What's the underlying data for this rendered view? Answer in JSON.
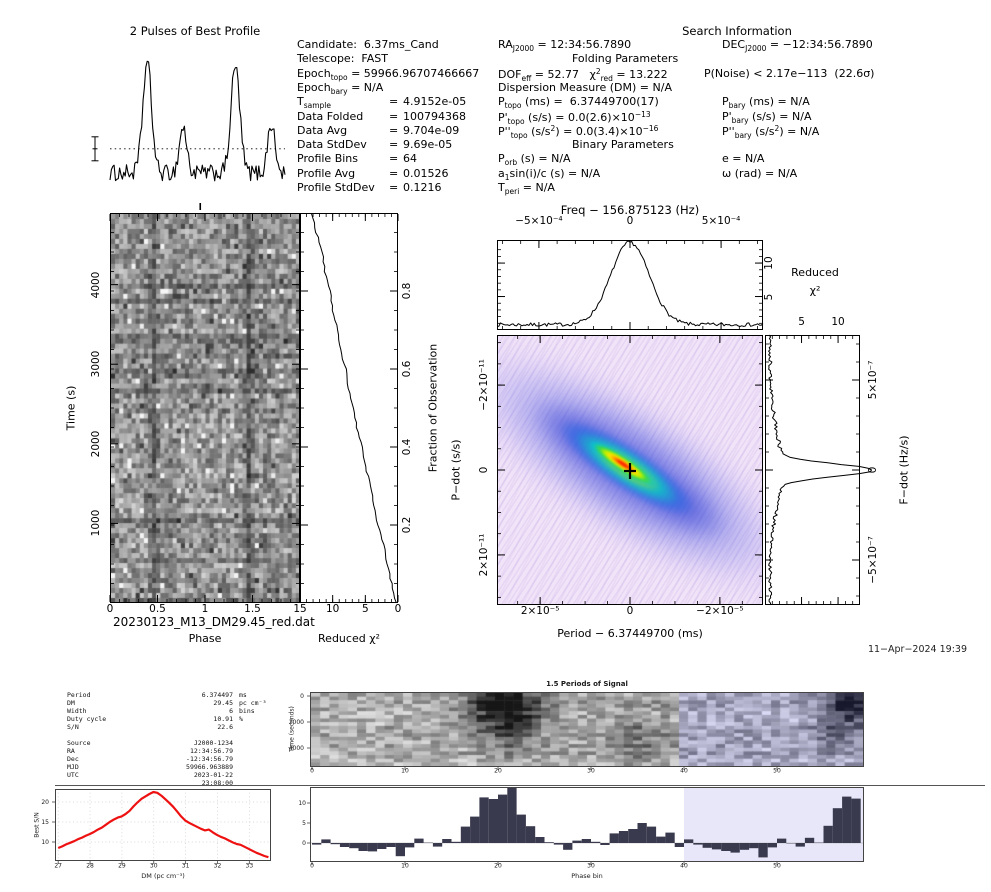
{
  "presto": {
    "profile_title": "2 Pulses of Best Profile",
    "candidate_lines": [
      {
        "tokens": [
          {
            "t": "Candidate:  6.37ms_Cand"
          }
        ]
      },
      {
        "tokens": [
          {
            "t": "Telescope:  FAST"
          }
        ]
      },
      {
        "tokens": [
          {
            "t": "Epoch"
          },
          {
            "sub": "topo"
          },
          {
            "t": " = 59966.96707466667"
          }
        ]
      },
      {
        "tokens": [
          {
            "t": "Epoch"
          },
          {
            "sub": "bary"
          },
          {
            "t": " = N/A"
          }
        ]
      },
      {
        "tokens": [
          {
            "t": "T"
          },
          {
            "sub": "sample"
          }
        ],
        "eq": "4.9152e-05"
      },
      {
        "tokens": [
          {
            "t": "Data Folded"
          }
        ],
        "eq": "100794368"
      },
      {
        "tokens": [
          {
            "t": "Data Avg"
          }
        ],
        "eq": "9.704e-09"
      },
      {
        "tokens": [
          {
            "t": "Data StdDev"
          }
        ],
        "eq": "9.69e-05"
      },
      {
        "tokens": [
          {
            "t": "Profile Bins"
          }
        ],
        "eq": "64"
      },
      {
        "tokens": [
          {
            "t": "Profile Avg"
          }
        ],
        "eq": "0.01526"
      },
      {
        "tokens": [
          {
            "t": "Profile StdDev"
          }
        ],
        "eq": "0.1216"
      }
    ],
    "search": {
      "title": "Search Information",
      "lines": [
        {
          "left": [
            {
              "t": "RA"
            },
            {
              "sub": "J2000"
            },
            {
              "t": " = 12:34:56.7890"
            }
          ],
          "right": [
            {
              "t": "DEC"
            },
            {
              "sub": "J2000"
            },
            {
              "t": " = −12:34:56.7890"
            }
          ]
        },
        {
          "heading": [
            {
              "t": "Folding Parameters"
            }
          ]
        },
        {
          "left": [
            {
              "t": "DOF"
            },
            {
              "sub": "eff"
            },
            {
              "t": " = 52.77   χ"
            },
            {
              "sup": "2"
            },
            {
              "sub": "red"
            },
            {
              "t": " = 13.222"
            }
          ],
          "right": [
            {
              "t": "P(Noise) < 2.17e−113  (22.6σ)"
            }
          ],
          "rx": 206
        },
        {
          "left": [
            {
              "t": "Dispersion Measure (DM) = N/A"
            }
          ]
        },
        {
          "left": [
            {
              "t": "P"
            },
            {
              "sub": "topo"
            },
            {
              "t": " (ms) =  6.37449700(17)"
            }
          ],
          "right": [
            {
              "t": "P"
            },
            {
              "sub": "bary"
            },
            {
              "t": " (ms) = N/A"
            }
          ]
        },
        {
          "left": [
            {
              "t": "P'"
            },
            {
              "sub": "topo"
            },
            {
              "t": " (s/s) = 0.0(2.6)×10"
            },
            {
              "sup": "−13"
            }
          ],
          "right": [
            {
              "t": "P'"
            },
            {
              "sub": "bary"
            },
            {
              "t": " (s/s) = N/A"
            }
          ]
        },
        {
          "left": [
            {
              "t": "P''"
            },
            {
              "sub": "topo"
            },
            {
              "t": " (s/s"
            },
            {
              "sup": "2"
            },
            {
              "t": ") = 0.0(3.4)×10"
            },
            {
              "sup": "−16"
            }
          ],
          "right": [
            {
              "t": "P''"
            },
            {
              "sub": "bary"
            },
            {
              "t": " (s/s"
            },
            {
              "sup": "2"
            },
            {
              "t": ") = N/A"
            }
          ]
        },
        {
          "heading": [
            {
              "t": "Binary Parameters"
            }
          ]
        },
        {
          "left": [
            {
              "t": "P"
            },
            {
              "sub": "orb"
            },
            {
              "t": " (s) = N/A"
            }
          ],
          "right": [
            {
              "t": "e = N/A"
            }
          ]
        },
        {
          "left": [
            {
              "t": "a"
            },
            {
              "sub": "1"
            },
            {
              "t": "sin(i)/c (s) = N/A"
            }
          ],
          "right": [
            {
              "t": "ω (rad) = N/A"
            }
          ]
        },
        {
          "left": [
            {
              "t": "T"
            },
            {
              "sub": "peri"
            },
            {
              "t": " = N/A"
            }
          ]
        }
      ]
    },
    "filename": "20230123_M13_DM29.45_red.dat",
    "datestamp": "11−Apr−2024 19:39"
  },
  "labels": {
    "phase": "Phase",
    "time_s": "Time (s)",
    "reduced_chi2": "Reduced χ²",
    "fraction": "Fraction of Observation",
    "freq_title": "Freq − 156.875123 (Hz)",
    "reduced_word": "Reduced",
    "chi2_sq": "χ²",
    "pdot": "P−dot (s/s)",
    "period_label": "Period − 6.37449700 (ms)",
    "fdot": "F−dot (Hz/s)",
    "wf_title": "1.5 Periods of Signal",
    "time_seconds": "Time (seconds)",
    "best_sn": "Best S/N",
    "dm_label": "DM (pc cm⁻³)",
    "phase_bin": "Phase bin"
  },
  "bottom": {
    "info_rows": [
      {
        "label": "Period",
        "value": "6.374497",
        "unit": "ms"
      },
      {
        "label": "DM",
        "value": "29.45",
        "unit": "pc cm⁻³"
      },
      {
        "label": "Width",
        "value": "6",
        "unit": "bins"
      },
      {
        "label": "Duty cycle",
        "value": "10.91",
        "unit": "%"
      },
      {
        "label": "S/N",
        "value": "22.6",
        "unit": ""
      },
      {
        "gap": true
      },
      {
        "label": "Source",
        "value": "J2000-1234",
        "unit": ""
      },
      {
        "label": "RA",
        "value": "12:34:56.79",
        "unit": ""
      },
      {
        "label": "Dec",
        "value": "-12:34:56.79",
        "unit": ""
      },
      {
        "label": "MJD",
        "value": "59966.963889",
        "unit": ""
      },
      {
        "label": "UTC",
        "value": "2023-01-22 23:08:00",
        "unit": ""
      }
    ]
  },
  "colors": {
    "snr_red": "#ee1111",
    "hist_bar": "#3a3a4e",
    "highlight_lavender": "#e7e7f9",
    "band_blue": "#3c46d8",
    "pdot_background": "#f2e4f8"
  },
  "chart_data": [
    {
      "id": "pulse_profile",
      "type": "line",
      "title": "2 Pulses of Best Profile",
      "x_desc": "2 pulses, 128 phase bins",
      "peaks": [
        {
          "bin": 27,
          "amp": 1.0,
          "sigma": 3.2
        },
        {
          "bin": 53,
          "amp": 0.42,
          "sigma": 2.6
        },
        {
          "bin": 91,
          "amp": 0.97,
          "sigma": 3.2
        },
        {
          "bin": 117,
          "amp": 0.45,
          "sigma": 2.6
        }
      ],
      "noise_sigma": 0.075,
      "mean_level": 0.22,
      "error_bar": true
    },
    {
      "id": "phase_time",
      "type": "heatmap",
      "xlabel": "Phase",
      "ylabel": "Time (s)",
      "xlim": [
        0,
        2
      ],
      "ylim": [
        0,
        4900
      ],
      "xticks": [
        0,
        0.5,
        1,
        1.5
      ],
      "yticks": [
        1000,
        2000,
        3000,
        4000
      ],
      "pulse_band_phases": [
        0.45,
        1.45
      ],
      "marker_phase": 0.95
    },
    {
      "id": "chi2_vs_time",
      "type": "line",
      "xlabel": "Reduced χ²",
      "xlim": [
        15,
        0
      ],
      "xticks": [
        15,
        10,
        5,
        0
      ],
      "right_label": "Fraction of Observation",
      "right_ticks": [
        0.2,
        0.4,
        0.6,
        0.8
      ],
      "fraction_step": 0.05,
      "chi2": [
        0.3,
        1.0,
        1.7,
        2.2,
        3.1,
        3.7,
        4.1,
        5.0,
        5.5,
        6.3,
        6.8,
        7.6,
        8.0,
        8.8,
        9.2,
        10.0,
        10.4,
        11.2,
        11.6,
        12.5,
        13.2
      ]
    },
    {
      "id": "freq_chi2",
      "type": "line",
      "title": "Freq − 156.875123 (Hz)",
      "xticks": [
        "−5×10⁻⁴",
        "0",
        "5×10⁻⁴"
      ],
      "xtick_values": [
        -0.0005,
        0,
        0.0005
      ],
      "xlim": [
        -0.00073,
        0.00073
      ],
      "ylabel": "Reduced χ²",
      "yticks": [
        5,
        10
      ],
      "ylim": [
        0,
        13
      ],
      "peak": {
        "center": 0,
        "amplitude": 12.3,
        "sigma": 0.000105
      },
      "baseline": 0.8
    },
    {
      "id": "pdot_period",
      "type": "heatmap",
      "xlabel": "Period − 6.37449700 (ms)",
      "ylabel": "P−dot (s/s)",
      "xticks": [
        "2×10⁻⁵",
        "0",
        "−2×10⁻⁵"
      ],
      "xtick_values": [
        2e-05,
        0,
        -2e-05
      ],
      "yticks": [
        "−2×10⁻¹¹",
        "0",
        "2×10⁻¹¹"
      ],
      "ytick_values": [
        -2e-11,
        0,
        2e-11
      ],
      "xlim": [
        2.96e-05,
        -2.96e-05
      ],
      "ylim": [
        -3.18e-11,
        3.18e-11
      ],
      "best_marker": [
        0,
        0
      ],
      "colormap": "lavender background, blue diagonal ridge, rainbow core at best value"
    },
    {
      "id": "fdot_chi2",
      "type": "line",
      "ylabel": "F−dot (Hz/s)",
      "yticks": [
        "5×10⁻⁷",
        "0",
        "−5×10⁻⁷"
      ],
      "ytick_values": [
        5e-07,
        0,
        -5e-07
      ],
      "ylim": [
        7.5e-07,
        -7.5e-07
      ],
      "xticks_top": [
        5,
        10
      ],
      "xlim": [
        0,
        13
      ],
      "peak": {
        "center": 0,
        "amplitude": 12.4,
        "sigma": 3.4e-08
      },
      "baseline": 0.7
    },
    {
      "id": "snr_vs_dm",
      "type": "line",
      "xlabel": "DM (pc cm⁻³)",
      "ylabel": "Best S/N",
      "xlim": [
        26.9,
        33.68
      ],
      "xticks": [
        27,
        28,
        29,
        30,
        31,
        32,
        33
      ],
      "yticks": [
        10,
        15,
        20
      ],
      "x_start": 27.0,
      "x_step": 0.1245,
      "values": [
        8.5,
        8.9,
        9.4,
        9.8,
        10.2,
        10.7,
        11.1,
        11.6,
        12.0,
        12.5,
        13.1,
        13.6,
        14.3,
        15.0,
        15.6,
        16.1,
        16.4,
        17.0,
        17.8,
        18.9,
        19.9,
        20.8,
        21.4,
        22.0,
        22.5,
        22.3,
        21.6,
        20.7,
        19.8,
        18.8,
        17.6,
        16.4,
        15.4,
        14.8,
        14.3,
        13.8,
        13.3,
        12.9,
        13.1,
        12.4,
        11.8,
        11.3,
        10.9,
        10.4,
        9.9,
        9.5,
        9.3,
        8.8,
        8.3,
        7.8,
        7.3,
        6.9,
        6.5,
        6.2
      ]
    },
    {
      "id": "signal_waterfall",
      "type": "heatmap",
      "title": "1.5 Periods of Signal",
      "ylabel": "Time (seconds)",
      "xticks": [
        0,
        10,
        20,
        30,
        40,
        50
      ],
      "yticks": [
        0,
        2000,
        4000
      ],
      "n_phase_bins": 60,
      "highlight_from_bin": 40,
      "dark_blobs": [
        {
          "col": 20.5,
          "col_sigma": 2.9,
          "row_center": 3,
          "row_sigma": 4.5,
          "strength": 0.62
        },
        {
          "col": 21,
          "col_sigma": 2.2,
          "row_center": 10,
          "row_sigma": 5,
          "strength": 0.25
        },
        {
          "col": 35,
          "col_sigma": 2.5,
          "row_center": 12,
          "row_sigma": 6,
          "strength": 0.2
        },
        {
          "col": 58,
          "col_sigma": 1.8,
          "row_center": 2,
          "row_sigma": 3.5,
          "strength": 0.55
        },
        {
          "col": 57,
          "col_sigma": 2.0,
          "row_center": 9,
          "row_sigma": 5,
          "strength": 0.25
        }
      ]
    },
    {
      "id": "folded_profile_hist",
      "type": "bar",
      "xlabel": "Phase bin",
      "xticks": [
        0,
        10,
        20,
        30,
        40,
        50
      ],
      "yticks": [
        0,
        5,
        10
      ],
      "highlight_from_bin": 40,
      "values": [
        -0.4,
        0.9,
        -0.3,
        -1.0,
        -1.3,
        -2.0,
        -2.1,
        -1.5,
        -1.0,
        -3.3,
        -1.1,
        1.1,
        0.1,
        -0.9,
        1.0,
        0.3,
        4.1,
        6.6,
        11.4,
        11.0,
        12.1,
        13.8,
        7.1,
        4.2,
        1.5,
        0.2,
        -0.4,
        -1.7,
        0.6,
        1.0,
        0.3,
        -0.5,
        2.4,
        3.0,
        3.5,
        5.0,
        4.1,
        1.6,
        2.6,
        -1.0,
        0.9,
        -0.4,
        -1.2,
        -1.6,
        -2.0,
        -2.4,
        -1.7,
        -1.3,
        -3.6,
        -1.1,
        1.1,
        0.0,
        -0.9,
        1.3,
        0.1,
        4.3,
        8.7,
        11.6,
        11.1
      ]
    }
  ]
}
